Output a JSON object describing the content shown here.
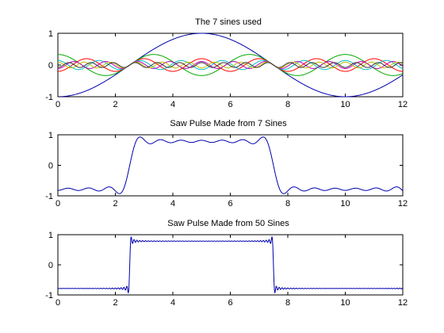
{
  "chart_data": [
    {
      "type": "line",
      "title": "The 7 sines used",
      "xlabel": "",
      "ylabel": "",
      "xlim": [
        0,
        12
      ],
      "ylim": [
        -1,
        1
      ],
      "xticks": [
        0,
        2,
        4,
        6,
        8,
        10,
        12
      ],
      "yticks": [
        -1,
        0,
        1
      ],
      "grid": false,
      "series": [
        {
          "color": "#0000ad",
          "amplitude": 1.0,
          "harmonic": 1
        },
        {
          "color": "#00aa00",
          "amplitude": 0.333,
          "harmonic": 3
        },
        {
          "color": "#ff0000",
          "amplitude": 0.2,
          "harmonic": 5
        },
        {
          "color": "#00bfbf",
          "amplitude": 0.143,
          "harmonic": 7
        },
        {
          "color": "#bf00bf",
          "amplitude": 0.111,
          "harmonic": 9
        },
        {
          "color": "#bfbf00",
          "amplitude": 0.091,
          "harmonic": 11
        },
        {
          "color": "#333333",
          "amplitude": 0.077,
          "harmonic": 13
        }
      ],
      "period": 10,
      "phase_x": 2.5,
      "sample_x": [
        0,
        2.5,
        5,
        7.5,
        10,
        12
      ],
      "sample_y_fundamental": [
        -1,
        0,
        1,
        0,
        -1,
        -0.31
      ]
    },
    {
      "type": "line",
      "title": "Saw Pulse Made from 7 Sines",
      "xlabel": "",
      "ylabel": "",
      "xlim": [
        0,
        12
      ],
      "ylim": [
        -1,
        1
      ],
      "xticks": [
        0,
        2,
        4,
        6,
        8,
        10,
        12
      ],
      "yticks": [
        -1,
        0,
        1
      ],
      "grid": false,
      "color": "#0000ad",
      "harmonics_used": 7,
      "period": 10,
      "high_interval": [
        2.5,
        7.5
      ],
      "plateau_level": 0.785
    },
    {
      "type": "line",
      "title": "Saw Pulse Made from 50 Sines",
      "xlabel": "",
      "ylabel": "",
      "xlim": [
        0,
        12
      ],
      "ylim": [
        -1,
        1
      ],
      "xticks": [
        0,
        2,
        4,
        6,
        8,
        10,
        12
      ],
      "yticks": [
        -1,
        0,
        1
      ],
      "grid": false,
      "color": "#0000ad",
      "harmonics_used": 50,
      "period": 10,
      "high_interval": [
        2.5,
        7.5
      ],
      "plateau_level": 0.785
    }
  ]
}
